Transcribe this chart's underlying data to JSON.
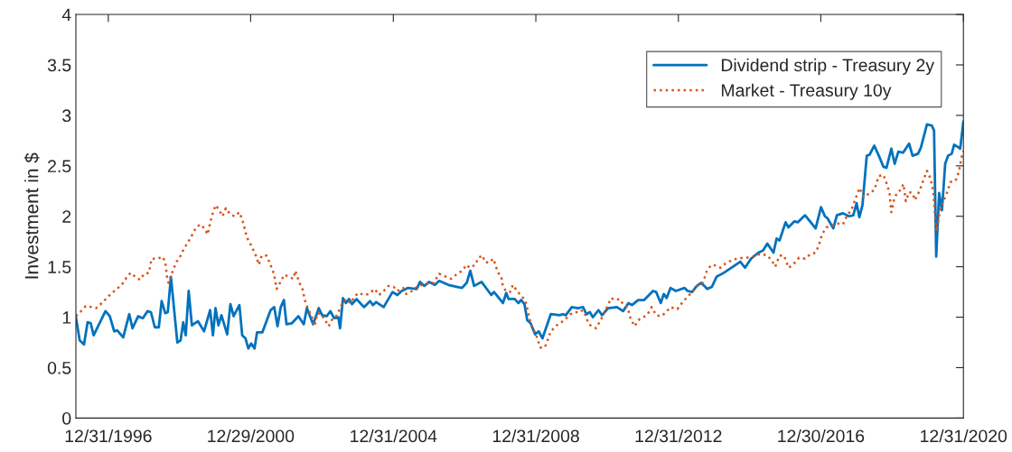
{
  "chart_data": {
    "type": "line",
    "ylabel": "Investment in $",
    "xlim": [
      "1996-02-03",
      "2020-12-31"
    ],
    "ylim": [
      0,
      4
    ],
    "xticks": [
      {
        "value": "1996-12-31",
        "label": "12/31/1996"
      },
      {
        "value": "2000-12-29",
        "label": "12/29/2000"
      },
      {
        "value": "2004-12-31",
        "label": "12/31/2004"
      },
      {
        "value": "2008-12-31",
        "label": "12/31/2008"
      },
      {
        "value": "2012-12-31",
        "label": "12/31/2012"
      },
      {
        "value": "2016-12-30",
        "label": "12/30/2016"
      },
      {
        "value": "2020-12-31",
        "label": "12/31/2020"
      }
    ],
    "yticks": [
      0,
      0.5,
      1,
      1.5,
      2,
      2.5,
      3,
      3.5,
      4
    ],
    "grid": false,
    "legend": "top right",
    "series": [
      {
        "name": "Dividend strip - Treasury 2y",
        "color": "#0072bd",
        "line_style": "solid",
        "x": [
          "1996-02-03",
          "1996-03-13",
          "1996-04-26",
          "1996-06-02",
          "1996-07-04",
          "1996-08-03",
          "1996-12-02",
          "1997-01-15",
          "1997-03-02",
          "1997-04-01",
          "1997-06-02",
          "1997-08-03",
          "1997-09-05",
          "1997-11-03",
          "1997-12-20",
          "1998-02-07",
          "1998-03-13",
          "1998-04-22",
          "1998-06-02",
          "1998-07-01",
          "1998-08-07",
          "1998-09-02",
          "1998-10-04",
          "1998-12-09",
          "1999-01-11",
          "1999-02-07",
          "1999-03-05",
          "1999-04-04",
          "1999-05-07",
          "1999-07-08",
          "1999-09-09",
          "1999-11-10",
          "1999-12-09",
          "2000-01-04",
          "2000-02-03",
          "2000-03-05",
          "2000-05-03",
          "2000-06-05",
          "2000-07-08",
          "2000-09-05",
          "2000-10-04",
          "2000-11-07",
          "2000-12-05",
          "2001-01-04",
          "2001-02-07",
          "2001-03-05",
          "2001-04-29",
          "2001-07-22",
          "2001-08-28",
          "2001-10-01",
          "2001-11-03",
          "2001-12-05",
          "2002-01-01",
          "2002-02-25",
          "2002-05-03",
          "2002-06-27",
          "2002-07-29",
          "2002-10-01",
          "2002-11-28",
          "2003-01-01",
          "2003-02-17",
          "2003-03-27",
          "2003-05-03",
          "2003-06-16",
          "2003-07-04",
          "2003-08-03",
          "2003-09-02",
          "2003-10-04",
          "2003-11-03",
          "2003-12-20",
          "2004-03-05",
          "2004-05-07",
          "2004-06-05",
          "2004-07-08",
          "2004-09-23",
          "2004-12-23",
          "2005-02-10",
          "2005-03-27",
          "2005-05-28",
          "2005-08-28",
          "2005-10-01",
          "2005-11-14",
          "2006-01-01",
          "2006-03-02",
          "2006-04-15",
          "2006-07-19",
          "2006-10-19",
          "2006-12-05",
          "2007-01-22",
          "2007-02-28",
          "2007-04-08",
          "2007-06-23",
          "2007-10-01",
          "2007-10-29",
          "2008-01-29",
          "2008-03-02",
          "2008-03-27",
          "2008-05-28",
          "2008-07-04",
          "2008-08-03",
          "2008-09-05",
          "2008-10-04",
          "2008-11-07",
          "2008-12-23",
          "2009-01-29",
          "2009-03-09",
          "2009-06-02",
          "2009-09-02",
          "2009-10-04",
          "2009-11-03",
          "2010-01-04",
          "2010-03-05",
          "2010-04-29",
          "2010-06-02",
          "2010-07-08",
          "2010-08-07",
          "2010-10-04",
          "2010-11-10",
          "2011-01-11",
          "2011-04-11",
          "2011-06-13",
          "2011-08-07",
          "2011-09-13",
          "2011-11-14",
          "2012-01-15",
          "2012-04-15",
          "2012-05-17",
          "2012-07-04",
          "2012-08-03",
          "2012-09-02",
          "2012-10-11",
          "2012-12-05",
          "2013-03-05",
          "2013-04-04",
          "2013-05-21",
          "2013-07-08",
          "2013-08-21",
          "2013-09-23",
          "2013-10-22",
          "2013-12-09",
          "2014-01-26",
          "2014-04-11",
          "2014-09-27",
          "2014-11-14",
          "2015-01-15",
          "2015-04-01",
          "2015-05-17",
          "2015-07-01",
          "2015-09-02",
          "2015-10-04",
          "2015-11-03",
          "2016-01-04",
          "2016-02-03",
          "2016-04-04",
          "2016-05-07",
          "2016-07-22",
          "2016-11-07",
          "2017-01-01",
          "2017-02-10",
          "2017-03-09",
          "2017-05-07",
          "2017-06-13",
          "2017-08-14",
          "2017-10-15",
          "2017-11-28",
          "2018-01-01",
          "2018-01-29",
          "2018-03-02",
          "2018-04-15",
          "2018-05-14",
          "2018-07-01",
          "2018-08-17",
          "2018-10-04",
          "2018-11-03",
          "2018-12-23",
          "2019-01-26",
          "2019-03-05",
          "2019-04-22",
          "2019-06-23",
          "2019-07-29",
          "2019-09-23",
          "2019-10-22",
          "2019-12-23",
          "2020-02-10",
          "2020-03-05",
          "2020-03-27",
          "2020-04-26",
          "2020-05-25",
          "2020-06-27",
          "2020-07-26",
          "2020-09-02",
          "2020-09-27",
          "2020-11-14",
          "2020-11-28",
          "2020-12-31"
        ],
        "values": [
          1.0,
          0.77,
          0.73,
          0.95,
          0.94,
          0.82,
          1.06,
          1.01,
          0.86,
          0.87,
          0.8,
          1.03,
          0.89,
          1.01,
          0.99,
          1.06,
          1.05,
          0.9,
          0.9,
          1.16,
          1.04,
          1.05,
          1.4,
          0.75,
          0.77,
          0.95,
          0.82,
          1.26,
          0.92,
          0.96,
          0.86,
          1.07,
          0.82,
          1.09,
          0.92,
          1.02,
          0.83,
          1.13,
          1.01,
          1.12,
          0.82,
          0.79,
          0.69,
          0.74,
          0.69,
          0.85,
          0.85,
          1.07,
          1.1,
          0.91,
          1.1,
          1.17,
          0.93,
          0.94,
          1.01,
          0.93,
          1.09,
          0.93,
          1.09,
          1.02,
          1.01,
          1.06,
          0.99,
          1.0,
          0.89,
          1.19,
          1.14,
          1.18,
          1.13,
          1.18,
          1.1,
          1.16,
          1.12,
          1.15,
          1.1,
          1.25,
          1.22,
          1.26,
          1.29,
          1.28,
          1.35,
          1.31,
          1.35,
          1.32,
          1.36,
          1.32,
          1.3,
          1.29,
          1.34,
          1.46,
          1.31,
          1.35,
          1.22,
          1.25,
          1.14,
          1.24,
          1.18,
          1.18,
          1.14,
          1.17,
          1.13,
          0.97,
          0.94,
          0.83,
          0.86,
          0.79,
          1.03,
          1.02,
          1.03,
          1.02,
          1.1,
          1.09,
          1.1,
          1.03,
          1.05,
          1.0,
          1.07,
          1.02,
          1.09,
          1.1,
          1.06,
          1.14,
          1.12,
          1.17,
          1.17,
          1.26,
          1.25,
          1.14,
          1.23,
          1.19,
          1.29,
          1.26,
          1.29,
          1.26,
          1.25,
          1.31,
          1.34,
          1.31,
          1.28,
          1.3,
          1.4,
          1.44,
          1.55,
          1.49,
          1.58,
          1.64,
          1.66,
          1.73,
          1.64,
          1.78,
          1.76,
          1.94,
          1.89,
          1.95,
          1.94,
          2.01,
          1.88,
          2.09,
          2.0,
          1.98,
          1.88,
          2.01,
          2.03,
          2.0,
          2.01,
          2.13,
          1.99,
          2.11,
          2.6,
          2.61,
          2.7,
          2.6,
          2.49,
          2.48,
          2.67,
          2.52,
          2.64,
          2.63,
          2.72,
          2.6,
          2.62,
          2.68,
          2.91,
          2.9,
          2.85,
          1.6,
          2.23,
          2.06,
          2.52,
          2.6,
          2.62,
          2.71,
          2.68,
          2.67,
          2.94
        ]
      },
      {
        "name": "Market - Treasury 10y",
        "color": "#d95319",
        "line_style": "dotted",
        "x": [
          "1996-02-03",
          "1996-03-27",
          "1996-05-14",
          "1996-07-15",
          "1996-08-28",
          "1996-10-15",
          "1997-01-15",
          "1997-03-16",
          "1997-05-17",
          "1997-07-04",
          "1997-08-17",
          "1997-10-04",
          "1997-11-21",
          "1998-01-04",
          "1998-02-21",
          "1998-03-20",
          "1998-05-21",
          "1998-07-08",
          "1998-08-07",
          "1998-08-25",
          "1998-09-09",
          "1998-10-08",
          "1998-11-25",
          "1999-01-11",
          "1999-02-10",
          "1999-03-13",
          "1999-04-26",
          "1999-06-13",
          "1999-07-29",
          "1999-09-13",
          "1999-10-15",
          "1999-11-14",
          "1999-12-16",
          "2000-01-08",
          "2000-02-17",
          "2000-03-16",
          "2000-04-19",
          "2000-06-02",
          "2000-07-19",
          "2000-09-05",
          "2000-10-04",
          "2000-11-21",
          "2001-01-04",
          "2001-02-21",
          "2001-03-23",
          "2001-04-22",
          "2001-06-09",
          "2001-07-08",
          "2001-08-25",
          "2001-09-23",
          "2001-10-26",
          "2001-12-09",
          "2002-01-26",
          "2002-03-13",
          "2002-04-01",
          "2002-05-14",
          "2002-06-13",
          "2002-07-11",
          "2002-08-14",
          "2002-09-13",
          "2002-10-15",
          "2002-11-14",
          "2002-12-23",
          "2003-01-26",
          "2003-03-09",
          "2003-04-08",
          "2003-06-02",
          "2003-07-19",
          "2003-09-02",
          "2003-10-19",
          "2003-11-21",
          "2004-01-04",
          "2004-03-05",
          "2004-04-22",
          "2004-06-23",
          "2004-08-07",
          "2004-09-23",
          "2004-11-10",
          "2005-01-04",
          "2005-02-10",
          "2005-04-11",
          "2005-05-14",
          "2005-07-11",
          "2005-09-13",
          "2005-11-28",
          "2006-02-17",
          "2006-04-15",
          "2006-06-02",
          "2006-08-17",
          "2006-10-04",
          "2006-12-05",
          "2007-01-22",
          "2007-02-21",
          "2007-04-22",
          "2007-05-21",
          "2007-07-08",
          "2007-07-22",
          "2007-09-09",
          "2007-10-22",
          "2007-12-09",
          "2008-01-11",
          "2008-01-26",
          "2008-02-25",
          "2008-04-11",
          "2008-05-10",
          "2008-06-20",
          "2008-07-26",
          "2008-09-13",
          "2008-10-15",
          "2008-11-14",
          "2009-01-01",
          "2009-02-14",
          "2009-04-01",
          "2009-04-26",
          "2009-06-02",
          "2009-08-03",
          "2009-10-19",
          "2009-12-20",
          "2010-02-07",
          "2010-03-20",
          "2010-05-07",
          "2010-06-23",
          "2010-07-22",
          "2010-09-09",
          "2010-10-26",
          "2010-12-16",
          "2011-02-10",
          "2011-03-27",
          "2011-05-10",
          "2011-06-13",
          "2011-07-29",
          "2011-08-28",
          "2011-10-08",
          "2011-11-28",
          "2012-02-14",
          "2012-04-01",
          "2012-05-17",
          "2012-07-04",
          "2012-08-17",
          "2012-10-11",
          "2012-12-20",
          "2013-02-21",
          "2013-04-22",
          "2013-06-05",
          "2013-07-22",
          "2013-09-09",
          "2013-10-22",
          "2013-12-09",
          "2014-01-26",
          "2014-03-09",
          "2014-04-26",
          "2014-07-11",
          "2014-08-28",
          "2014-10-29",
          "2015-01-01",
          "2015-03-02",
          "2015-04-29",
          "2015-07-01",
          "2015-08-17",
          "2015-09-20",
          "2015-11-03",
          "2015-12-20",
          "2016-02-03",
          "2016-03-20",
          "2016-05-21",
          "2016-07-22",
          "2016-09-09",
          "2016-11-07",
          "2016-12-09",
          "2017-01-11",
          "2017-02-25",
          "2017-04-11",
          "2017-06-13",
          "2017-08-14",
          "2017-09-27",
          "2017-11-07",
          "2017-12-16",
          "2018-01-29",
          "2018-03-16",
          "2018-05-14",
          "2018-07-01",
          "2018-08-17",
          "2018-10-04",
          "2018-11-03",
          "2018-12-05",
          "2018-12-23",
          "2019-01-19",
          "2019-02-17",
          "2019-03-27",
          "2019-04-26",
          "2019-05-21",
          "2019-06-23",
          "2019-07-29",
          "2019-08-21",
          "2019-10-08",
          "2019-11-25",
          "2019-12-23",
          "2020-01-26",
          "2020-02-25",
          "2020-03-20",
          "2020-04-01",
          "2020-04-26",
          "2020-05-25",
          "2020-07-11",
          "2020-08-21",
          "2020-10-11",
          "2020-11-14",
          "2020-12-13",
          "2020-12-31"
        ],
        "values": [
          1.01,
          1.06,
          1.11,
          1.1,
          1.09,
          1.13,
          1.22,
          1.27,
          1.32,
          1.39,
          1.44,
          1.4,
          1.37,
          1.43,
          1.44,
          1.58,
          1.58,
          1.6,
          1.55,
          1.4,
          1.34,
          1.42,
          1.54,
          1.61,
          1.67,
          1.72,
          1.79,
          1.88,
          1.92,
          1.88,
          1.82,
          1.95,
          2.06,
          2.11,
          2.05,
          2.0,
          2.08,
          2.02,
          2.0,
          2.04,
          1.97,
          1.79,
          1.71,
          1.61,
          1.52,
          1.61,
          1.61,
          1.55,
          1.43,
          1.28,
          1.34,
          1.42,
          1.4,
          1.38,
          1.46,
          1.34,
          1.28,
          1.16,
          1.07,
          1.02,
          0.91,
          1.04,
          1.03,
          0.98,
          0.91,
          0.97,
          1.02,
          1.12,
          1.18,
          1.14,
          1.19,
          1.24,
          1.22,
          1.23,
          1.28,
          1.22,
          1.26,
          1.31,
          1.3,
          1.26,
          1.29,
          1.23,
          1.26,
          1.31,
          1.33,
          1.34,
          1.43,
          1.41,
          1.38,
          1.42,
          1.46,
          1.52,
          1.49,
          1.52,
          1.59,
          1.61,
          1.55,
          1.54,
          1.58,
          1.44,
          1.41,
          1.32,
          1.26,
          1.25,
          1.32,
          1.26,
          1.22,
          1.17,
          1.04,
          0.92,
          0.83,
          0.7,
          0.7,
          0.76,
          0.86,
          0.92,
          0.97,
          1.03,
          1.04,
          1.07,
          1.06,
          0.94,
          0.91,
          0.89,
          0.97,
          1.07,
          1.19,
          1.17,
          1.18,
          1.13,
          1.1,
          0.99,
          0.91,
          0.98,
          1.02,
          1.1,
          1.02,
          1.01,
          1.04,
          1.1,
          1.08,
          1.16,
          1.22,
          1.27,
          1.32,
          1.34,
          1.47,
          1.52,
          1.51,
          1.49,
          1.53,
          1.57,
          1.58,
          1.59,
          1.59,
          1.61,
          1.63,
          1.61,
          1.56,
          1.5,
          1.61,
          1.61,
          1.49,
          1.52,
          1.59,
          1.58,
          1.62,
          1.64,
          1.71,
          1.82,
          1.89,
          1.9,
          1.93,
          1.92,
          2.01,
          2.06,
          2.16,
          2.28,
          2.19,
          2.23,
          2.26,
          2.4,
          2.41,
          2.33,
          2.23,
          2.04,
          2.16,
          2.23,
          2.26,
          2.32,
          2.15,
          2.24,
          2.23,
          2.16,
          2.25,
          2.38,
          2.45,
          2.38,
          2.26,
          1.94,
          1.85,
          2.01,
          2.12,
          2.22,
          2.34,
          2.35,
          2.44,
          2.59,
          2.65
        ]
      }
    ]
  }
}
